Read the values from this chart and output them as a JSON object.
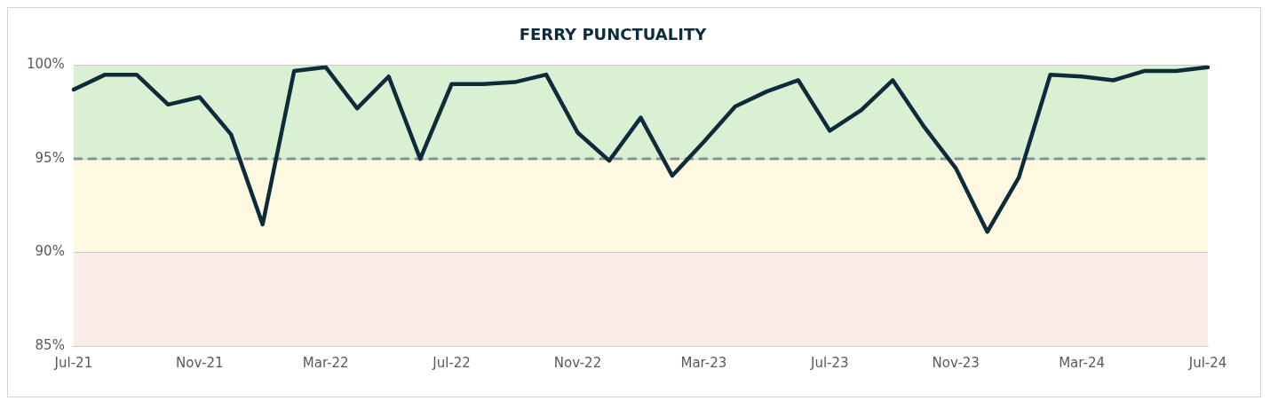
{
  "chart_data": {
    "type": "line",
    "title": "FERRY PUNCTUALITY",
    "categories": [
      "Jul-21",
      null,
      null,
      null,
      "Nov-21",
      null,
      null,
      null,
      "Mar-22",
      null,
      null,
      null,
      "Jul-22",
      null,
      null,
      null,
      "Nov-22",
      null,
      null,
      null,
      "Mar-23",
      null,
      null,
      null,
      "Jul-23",
      null,
      null,
      null,
      "Nov-23",
      null,
      null,
      null,
      "Mar-24",
      null,
      null,
      null,
      "Jul-24"
    ],
    "series": [
      {
        "color": "#0d2b3a",
        "values": [
          98.7,
          99.5,
          99.5,
          97.9,
          98.3,
          96.3,
          91.5,
          99.7,
          99.9,
          97.7,
          99.4,
          95.0,
          99.0,
          99.0,
          99.1,
          99.5,
          96.4,
          94.9,
          97.2,
          94.1,
          95.9,
          97.8,
          98.6,
          99.2,
          96.5,
          97.6,
          99.2,
          96.7,
          94.5,
          91.1,
          94.0,
          99.5,
          99.4,
          99.2,
          99.7,
          99.7,
          99.9
        ]
      }
    ],
    "ylim": [
      85,
      100
    ],
    "yticks": [
      {
        "value": 85,
        "label": "85%"
      },
      {
        "value": 90,
        "label": "90%"
      },
      {
        "value": 95,
        "label": "95%"
      },
      {
        "value": 100,
        "label": "100%"
      }
    ],
    "bands": [
      {
        "axis": "y",
        "from": 95,
        "to": 100,
        "color": "#d9f0d3"
      },
      {
        "axis": "y",
        "from": 90,
        "to": 95,
        "color": "#fef9e0"
      },
      {
        "axis": "y",
        "from": 85,
        "to": 90,
        "color": "#fdebe8"
      }
    ],
    "ref_lines": [
      {
        "axis": "y",
        "value": 95,
        "color": "#7f949c",
        "line_style": "dashed"
      }
    ],
    "grid": "y",
    "legend": false,
    "marker": "none",
    "line_style": "solid"
  }
}
